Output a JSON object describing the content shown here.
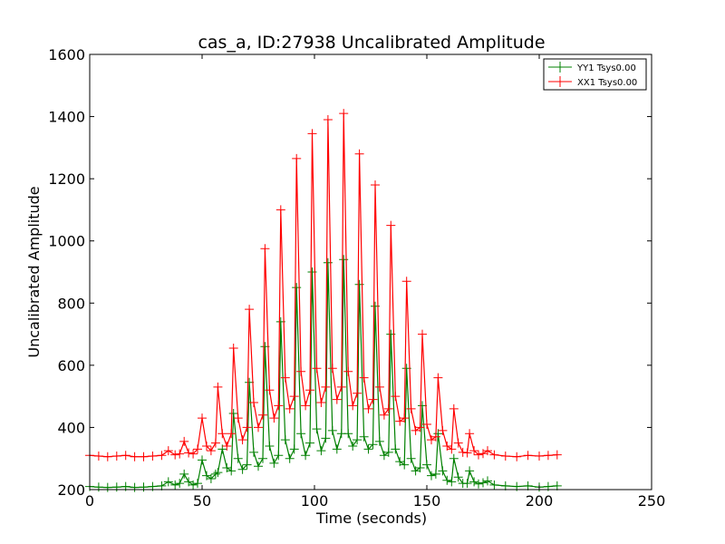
{
  "chart_data": {
    "type": "line",
    "title": "cas_a, ID:27938 Uncalibrated Amplitude",
    "xlabel": "Time (seconds)",
    "ylabel": "Uncalibrated Amplitude",
    "xlim": [
      0,
      250
    ],
    "ylim": [
      200,
      1600
    ],
    "xticks": [
      "0",
      "50",
      "100",
      "150",
      "200",
      "250"
    ],
    "yticks": [
      "200",
      "400",
      "600",
      "800",
      "1000",
      "1200",
      "1400",
      "1600"
    ],
    "grid": false,
    "legend_position": "top-right",
    "x": [
      0,
      4,
      8,
      12,
      16,
      20,
      24,
      28,
      32,
      35,
      38,
      40,
      42,
      44,
      46,
      48,
      50,
      52,
      54,
      56,
      57,
      59,
      61,
      63,
      64,
      66,
      68,
      70,
      71,
      73,
      75,
      77,
      78,
      80,
      82,
      84,
      85,
      87,
      89,
      91,
      92,
      94,
      96,
      98,
      99,
      101,
      103,
      105,
      106,
      108,
      110,
      112,
      113,
      115,
      117,
      119,
      120,
      122,
      124,
      126,
      127,
      129,
      131,
      133,
      134,
      136,
      138,
      140,
      141,
      143,
      145,
      147,
      148,
      150,
      152,
      154,
      155,
      157,
      159,
      161,
      162,
      164,
      166,
      168,
      169,
      171,
      173,
      175,
      177,
      180,
      185,
      190,
      195,
      200,
      204,
      208
    ],
    "series": [
      {
        "name": "YY1 Tsys0.00",
        "color": "#008000",
        "values": [
          210,
          208,
          207,
          208,
          210,
          207,
          208,
          210,
          212,
          225,
          215,
          220,
          250,
          225,
          215,
          220,
          295,
          245,
          235,
          250,
          255,
          330,
          270,
          260,
          445,
          300,
          265,
          280,
          545,
          320,
          275,
          300,
          660,
          340,
          285,
          310,
          740,
          360,
          300,
          330,
          850,
          380,
          310,
          350,
          900,
          395,
          325,
          365,
          930,
          390,
          330,
          380,
          940,
          380,
          340,
          360,
          860,
          370,
          330,
          345,
          790,
          355,
          310,
          320,
          700,
          330,
          290,
          280,
          590,
          300,
          260,
          270,
          470,
          280,
          245,
          250,
          380,
          260,
          230,
          225,
          300,
          240,
          220,
          220,
          260,
          225,
          218,
          222,
          228,
          215,
          212,
          210,
          212,
          208,
          210,
          212
        ]
      },
      {
        "name": "XX1 Tsys0.00",
        "color": "#ff0000",
        "values": [
          310,
          308,
          306,
          308,
          310,
          306,
          306,
          308,
          310,
          325,
          312,
          315,
          355,
          318,
          315,
          330,
          430,
          340,
          325,
          350,
          530,
          380,
          340,
          380,
          655,
          430,
          360,
          400,
          780,
          480,
          400,
          440,
          975,
          520,
          430,
          470,
          1100,
          560,
          460,
          500,
          1265,
          580,
          470,
          520,
          1345,
          590,
          480,
          530,
          1390,
          590,
          490,
          530,
          1410,
          580,
          470,
          510,
          1280,
          560,
          460,
          490,
          1180,
          530,
          440,
          460,
          1050,
          500,
          420,
          430,
          870,
          460,
          390,
          400,
          700,
          410,
          360,
          370,
          560,
          390,
          340,
          330,
          460,
          350,
          320,
          318,
          380,
          325,
          312,
          316,
          325,
          312,
          308,
          306,
          310,
          308,
          310,
          312
        ]
      }
    ]
  }
}
